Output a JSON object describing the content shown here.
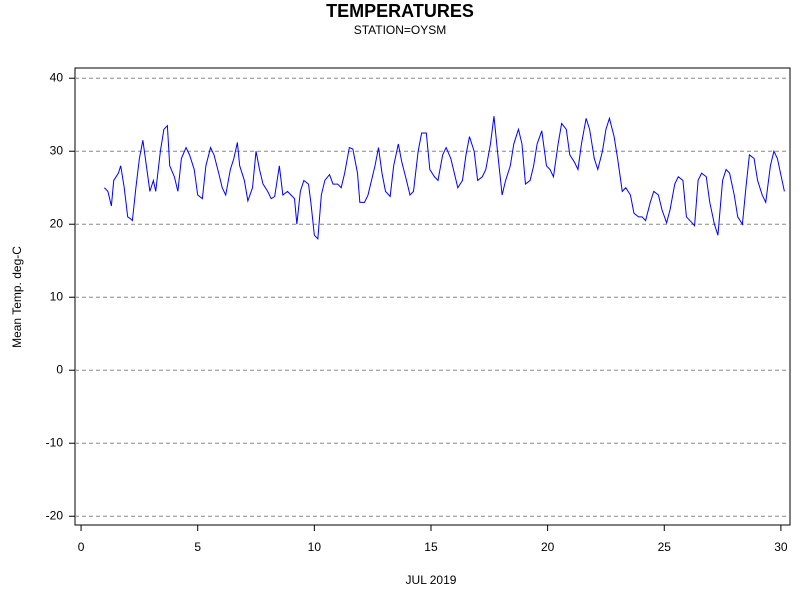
{
  "chart_data": {
    "type": "line",
    "title": "TEMPERATURES",
    "subtitle": "STATION=OYSM",
    "x_label": "JUL 2019",
    "y_label": "Mean Temp. deg-C",
    "xlim": [
      -0.26,
      30.39
    ],
    "ylim": [
      -21.2,
      41.4
    ],
    "xticks": [
      0,
      5,
      10,
      15,
      20,
      25,
      30
    ],
    "yticks": [
      -20,
      -10,
      0,
      10,
      20,
      30,
      40
    ],
    "grid": true,
    "x": [
      1.0,
      1.15,
      1.3,
      1.4,
      1.6,
      1.7,
      1.85,
      2.0,
      2.1,
      2.2,
      2.35,
      2.5,
      2.65,
      2.8,
      2.95,
      3.1,
      3.2,
      3.4,
      3.55,
      3.7,
      3.8,
      4.0,
      4.15,
      4.3,
      4.5,
      4.65,
      4.85,
      5.0,
      5.2,
      5.35,
      5.55,
      5.7,
      5.9,
      6.05,
      6.2,
      6.4,
      6.55,
      6.7,
      6.8,
      7.0,
      7.15,
      7.35,
      7.5,
      7.65,
      7.8,
      8.0,
      8.15,
      8.3,
      8.5,
      8.65,
      8.85,
      9.0,
      9.15,
      9.25,
      9.4,
      9.55,
      9.75,
      9.85,
      10.0,
      10.15,
      10.3,
      10.45,
      10.65,
      10.8,
      11.0,
      11.15,
      11.3,
      11.5,
      11.65,
      11.85,
      11.95,
      12.15,
      12.3,
      12.45,
      12.6,
      12.75,
      12.9,
      13.05,
      13.25,
      13.4,
      13.6,
      13.75,
      13.95,
      14.1,
      14.25,
      14.45,
      14.6,
      14.8,
      14.95,
      15.15,
      15.3,
      15.5,
      15.65,
      15.85,
      16.0,
      16.15,
      16.35,
      16.5,
      16.65,
      16.85,
      17.0,
      17.2,
      17.35,
      17.55,
      17.7,
      17.85,
      18.05,
      18.2,
      18.4,
      18.55,
      18.75,
      18.9,
      19.05,
      19.25,
      19.4,
      19.55,
      19.75,
      19.95,
      20.1,
      20.25,
      20.45,
      20.6,
      20.8,
      20.95,
      21.15,
      21.3,
      21.45,
      21.65,
      21.8,
      22.0,
      22.15,
      22.35,
      22.5,
      22.65,
      22.85,
      23.0,
      23.2,
      23.35,
      23.55,
      23.7,
      23.9,
      24.05,
      24.2,
      24.4,
      24.55,
      24.75,
      24.9,
      25.1,
      25.25,
      25.45,
      25.6,
      25.8,
      25.95,
      26.1,
      26.3,
      26.45,
      26.6,
      26.8,
      26.95,
      27.15,
      27.3,
      27.5,
      27.65,
      27.8,
      28.0,
      28.15,
      28.35,
      28.5,
      28.65,
      28.85,
      29.0,
      29.2,
      29.35,
      29.55,
      29.7,
      29.85,
      30.05,
      30.15
    ],
    "series": [
      {
        "name": "Mean Temp.",
        "color": "#0000ff",
        "values": [
          25,
          24.5,
          22.5,
          26,
          27,
          28,
          25,
          21,
          20.8,
          20.5,
          25,
          29,
          31.5,
          28,
          24.5,
          26,
          24.5,
          30,
          33,
          33.5,
          28,
          26.5,
          24.5,
          29,
          30.5,
          29.5,
          27.5,
          24,
          23.5,
          28,
          30.5,
          29.5,
          27,
          25,
          24,
          27.5,
          29,
          31.2,
          28,
          26,
          23.2,
          25,
          30,
          27.5,
          25.5,
          24.5,
          23.5,
          23.8,
          28,
          24,
          24.5,
          24,
          23.5,
          20,
          24.5,
          26,
          25.5,
          23,
          18.5,
          18,
          24,
          26,
          26.8,
          25.5,
          25.5,
          25,
          27,
          30.5,
          30.3,
          27,
          23,
          23,
          24,
          26,
          28,
          30.5,
          27,
          24.5,
          23.8,
          28,
          31,
          28.5,
          26,
          24,
          24.5,
          30,
          32.5,
          32.5,
          27.5,
          26.5,
          26,
          29.5,
          30.5,
          29,
          27,
          25,
          26,
          29.5,
          32,
          30,
          26,
          26.5,
          27.5,
          31,
          34.8,
          30,
          24,
          26,
          28,
          31,
          33,
          31,
          25.5,
          26,
          28,
          31,
          32.8,
          28,
          27.5,
          26.5,
          31,
          33.8,
          33,
          29.5,
          28.5,
          27.5,
          31,
          34.5,
          33,
          29,
          27.5,
          30,
          33,
          34.5,
          32,
          29,
          24.5,
          25,
          24,
          21.5,
          21,
          21,
          20.5,
          23,
          24.5,
          24,
          22,
          20.2,
          22,
          25.5,
          26.5,
          26,
          21,
          20.5,
          19.8,
          26,
          27,
          26.5,
          23,
          20,
          18.5,
          26,
          27.5,
          27,
          24,
          21,
          20,
          25,
          29.5,
          29,
          26,
          24,
          23,
          28,
          30,
          29,
          26,
          24.5
        ]
      }
    ]
  }
}
